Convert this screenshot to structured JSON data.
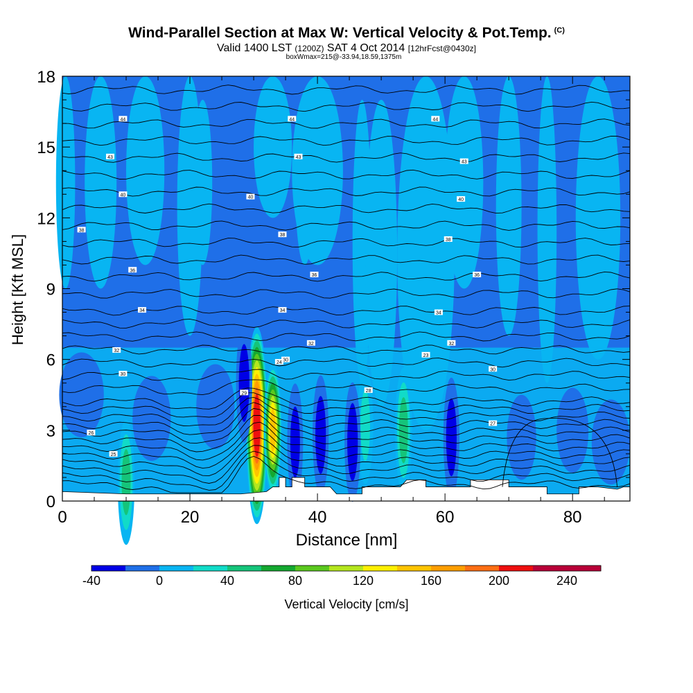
{
  "header": {
    "title": "Wind-Parallel Section at Max W: Vertical Velocity & Pot.Temp.",
    "copyright": "(C)",
    "subtitle_valid": "Valid 1400 LST",
    "subtitle_utc": "(1200Z)",
    "subtitle_date": "SAT 4 Oct 2014",
    "subtitle_fcst": "[12hrFcst@0430z]",
    "box_info": "boxWmax=215@-33.94,18.59,1375m"
  },
  "chart_data": {
    "type": "heatmap",
    "xlabel": "Distance [nm]",
    "ylabel": "Height [Kft MSL]",
    "xlim": [
      0,
      89
    ],
    "ylim": [
      0,
      18
    ],
    "x_ticks": [
      "0",
      "20",
      "40",
      "60",
      "80"
    ],
    "y_ticks": [
      "0",
      "3",
      "6",
      "9",
      "12",
      "15",
      "18"
    ],
    "colorbar": {
      "label": "Vertical Velocity [cm/s]",
      "tick_labels": [
        "-40",
        "0",
        "40",
        "80",
        "120",
        "160",
        "200",
        "240"
      ],
      "levels": [
        -40,
        -20,
        0,
        20,
        40,
        60,
        80,
        100,
        120,
        140,
        160,
        180,
        200,
        220,
        240,
        260
      ],
      "colors": [
        "#0000e6",
        "#1f6fe8",
        "#08b5f2",
        "#11dbc8",
        "#15c47a",
        "#14a830",
        "#5ac81e",
        "#b4e61e",
        "#fff000",
        "#ffc400",
        "#ff9e00",
        "#ff6e14",
        "#ee0f0f",
        "#b80038",
        "#b80038"
      ]
    },
    "theta_contour_labels": [
      "44",
      "44",
      "44",
      "43",
      "43",
      "43",
      "40",
      "40",
      "40",
      "38",
      "38",
      "38",
      "36",
      "36",
      "36",
      "34",
      "34",
      "34",
      "32",
      "32",
      "32",
      "30",
      "30",
      "30",
      "29",
      "28",
      "27",
      "26",
      "25",
      "24",
      "23"
    ],
    "field": {
      "wmax_cm_s": 215,
      "peak_location_nm": 30,
      "peak_height_kft": 3.2,
      "updraft_cores": [
        {
          "x": 30.5,
          "y": 3.2,
          "w": 215
        },
        {
          "x": 33,
          "y": 3.0,
          "w": 150
        },
        {
          "x": 10,
          "y": 0.8,
          "w": 60
        },
        {
          "x": 53.5,
          "y": 3.0,
          "w": 60
        },
        {
          "x": 47.5,
          "y": 3.2,
          "w": 35
        }
      ],
      "downdraft_cores": [
        {
          "x": 28.5,
          "y": 5.0,
          "w": -40
        },
        {
          "x": 40.5,
          "y": 2.8,
          "w": -40
        },
        {
          "x": 45.5,
          "y": 2.5,
          "w": -40
        },
        {
          "x": 61,
          "y": 2.7,
          "w": -40
        },
        {
          "x": 36.5,
          "y": 2.5,
          "w": -35
        }
      ]
    }
  }
}
